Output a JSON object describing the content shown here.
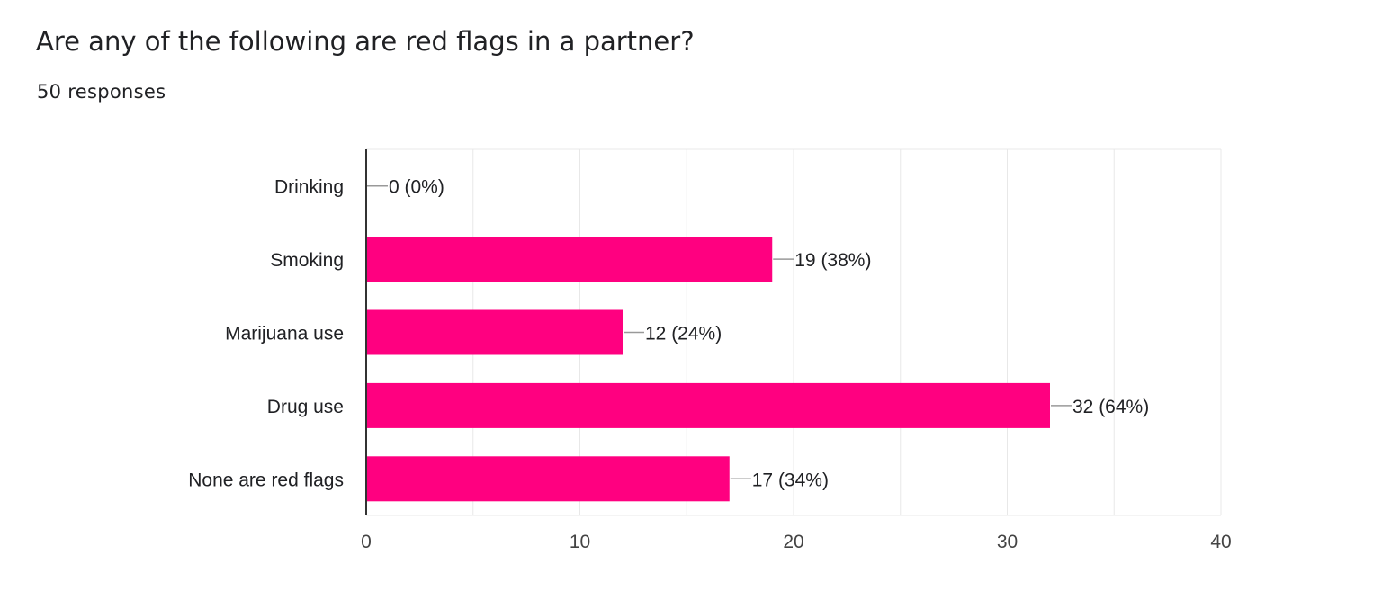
{
  "header": {
    "question": "Are any of the following are red flags in a partner?",
    "responses": "50 responses"
  },
  "colors": {
    "bar": "#FF0080",
    "text": "#202124",
    "axis_text": "#444444",
    "gridline": "#E8E8E8",
    "axis_line": "#333333",
    "leader_line": "#999999"
  },
  "chart_data": {
    "type": "bar",
    "orientation": "horizontal",
    "categories": [
      "Drinking",
      "Smoking",
      "Marijuana use",
      "Drug use",
      "None are red flags"
    ],
    "values": [
      0,
      19,
      12,
      32,
      17
    ],
    "value_labels": [
      "0 (0%)",
      "19 (38%)",
      "12 (24%)",
      "32 (64%)",
      "17 (34%)"
    ],
    "xlim": [
      0,
      40
    ],
    "x_ticks": [
      0,
      10,
      20,
      30,
      40
    ],
    "grid": true,
    "legend": "none"
  }
}
